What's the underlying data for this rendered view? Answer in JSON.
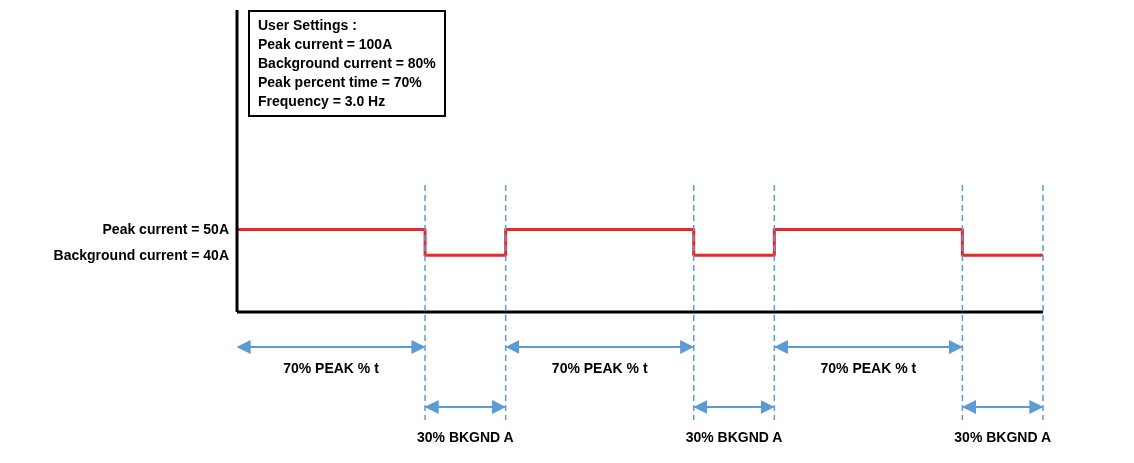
{
  "chart_data": {
    "type": "step",
    "categories": [
      null,
      null,
      null,
      null,
      null,
      null,
      null,
      null,
      null,
      null,
      null,
      null,
      null,
      null,
      null,
      null,
      null,
      null,
      null,
      null,
      null,
      null,
      null,
      null,
      null,
      null,
      null,
      null,
      null,
      null,
      null
    ],
    "series": [
      {
        "color": "#e32b2b",
        "values": [
          50,
          50,
          50,
          50,
          50,
          50,
          50,
          40,
          40,
          40,
          50,
          50,
          50,
          50,
          50,
          50,
          50,
          40,
          40,
          40,
          50,
          50,
          50,
          50,
          50,
          50,
          50,
          40,
          40,
          40,
          40
        ]
      }
    ],
    "ylim": [
      18,
      135
    ],
    "yticks": [
      {
        "value": 50,
        "label": "Peak current = 50A"
      },
      {
        "value": 40,
        "label": "Background current = 40A"
      }
    ],
    "tick_labels": "y",
    "grid": "x",
    "marker": "none",
    "line_style": "solid",
    "annotations": [
      "User Settings :\nPeak current = 100A\nBackground current = 80%\nPeak percent time = 70%\nFrequency = 3.0 Hz",
      "70% PEAK % t",
      "30% BKGND A",
      "70% PEAK % t",
      "30% BKGND A",
      "70% PEAK % t",
      "30% BKGND A"
    ]
  }
}
